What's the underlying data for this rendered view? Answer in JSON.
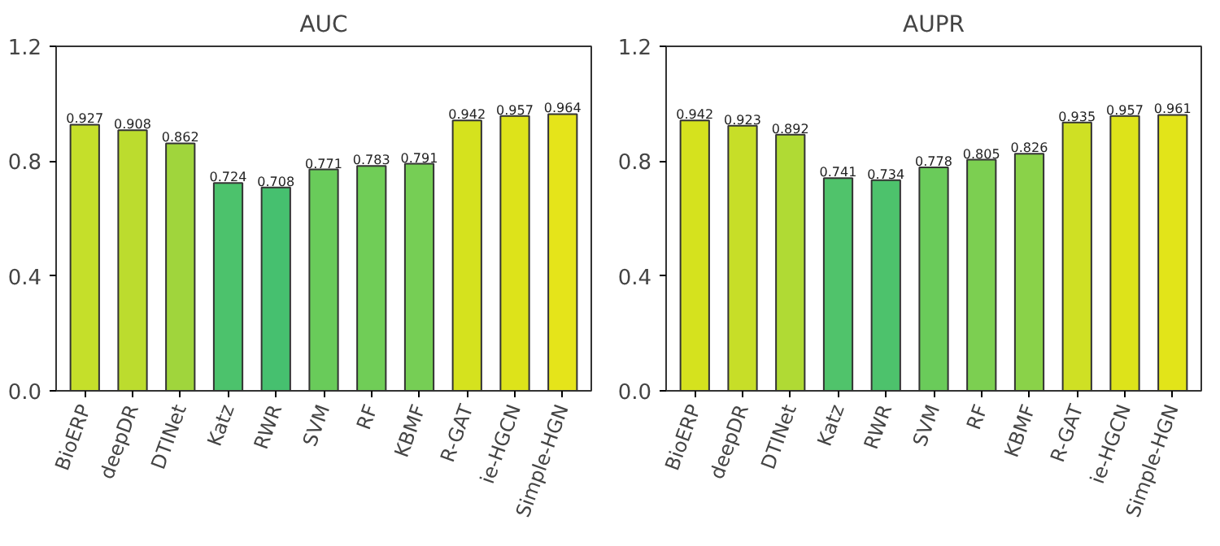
{
  "chart_data": [
    {
      "type": "bar",
      "title": "AUC",
      "categories": [
        "BioERP",
        "deepDR",
        "DTINet",
        "Katz",
        "RWR",
        "SVM",
        "RF",
        "KBMF",
        "R-GAT",
        "ie-HGCN",
        "Simple-HGN"
      ],
      "values": [
        0.927,
        0.908,
        0.862,
        0.724,
        0.708,
        0.771,
        0.783,
        0.791,
        0.942,
        0.957,
        0.964
      ],
      "colors": [
        "#c5df2a",
        "#bcdc2e",
        "#a0d53c",
        "#4cc26c",
        "#46c06f",
        "#69cb5a",
        "#70cd57",
        "#76ce55",
        "#d5e21e",
        "#dde31a",
        "#e5e41a"
      ],
      "ylim": [
        0,
        1.2
      ],
      "yticks": [
        {
          "value": 0,
          "label": "0.0"
        },
        0.4,
        0.8,
        1.2
      ],
      "data_labels": true,
      "grid": false
    },
    {
      "type": "bar",
      "title": "AUPR",
      "categories": [
        "BioERP",
        "deepDR",
        "DTINet",
        "Katz",
        "RWR",
        "SVM",
        "RF",
        "KBMF",
        "R-GAT",
        "ie-HGCN",
        "Simple-HGN"
      ],
      "values": [
        0.942,
        0.923,
        0.892,
        0.741,
        0.734,
        0.778,
        0.805,
        0.826,
        0.935,
        0.957,
        0.961
      ],
      "colors": [
        "#d5e21e",
        "#c7de28",
        "#b0da34",
        "#50c36b",
        "#4dc26c",
        "#6acb5a",
        "#7ccf51",
        "#8ad249",
        "#cfe024",
        "#dde31a",
        "#e2e419"
      ],
      "ylim": [
        0,
        1.2
      ],
      "yticks": [
        {
          "value": 0,
          "label": "0.0"
        },
        0.4,
        0.8,
        1.2
      ],
      "data_labels": true,
      "grid": false
    }
  ]
}
